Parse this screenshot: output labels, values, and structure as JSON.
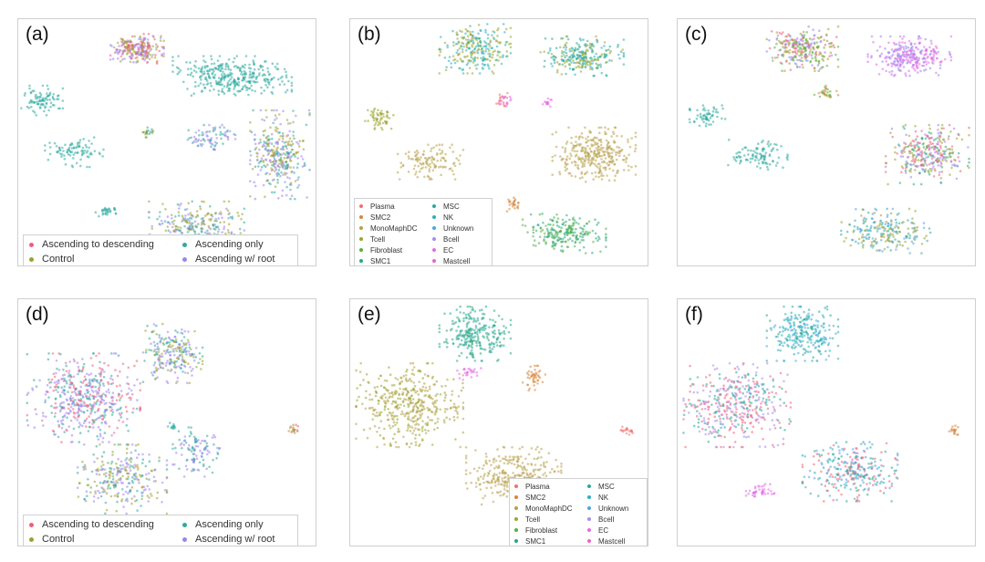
{
  "colors": {
    "ascending_to_descending": "#f0607a",
    "control": "#a0a032",
    "ascending_only": "#2eaaa0",
    "ascending_w_root": "#9c84ee",
    "Plasma": "#f07070",
    "SMC2": "#d9853a",
    "MonoMaphDC": "#b8a04a",
    "Tcell": "#9aa632",
    "Fibroblast": "#55b040",
    "SMC1": "#2aa880",
    "MSC": "#2aaa9c",
    "NK": "#2ab0c0",
    "Unknown": "#4aa6e6",
    "Bcell": "#a88cf0",
    "EC": "#e36ae6",
    "Mastcell": "#ee62c8"
  },
  "panels": [
    {
      "label": "(a)",
      "legend": "condition"
    },
    {
      "label": "(b)",
      "legend": "celltype"
    },
    {
      "label": "(c)",
      "legend": null
    },
    {
      "label": "(d)",
      "legend": "condition"
    },
    {
      "label": "(e)",
      "legend": "celltype"
    },
    {
      "label": "(f)",
      "legend": null
    }
  ],
  "legend_condition": {
    "col1": [
      "Ascending to descending",
      "Control"
    ],
    "col2": [
      "Ascending only",
      "Ascending w/ root"
    ],
    "col1_keys": [
      "ascending_to_descending",
      "control"
    ],
    "col2_keys": [
      "ascending_only",
      "ascending_w_root"
    ]
  },
  "legend_celltype": {
    "col1": [
      "Plasma",
      "SMC2",
      "MonoMaphDC",
      "Tcell",
      "Fibroblast",
      "SMC1"
    ],
    "col2": [
      "MSC",
      "NK",
      "Unknown",
      "Bcell",
      "EC",
      "Mastcell"
    ]
  },
  "chart_data": [
    {
      "type": "scatter",
      "panel": "(a)",
      "coloring": "condition",
      "legend_placement": "bottom-left",
      "clusters": [
        {
          "x": 0.4,
          "y": 0.12,
          "rx": 0.09,
          "ry": 0.06,
          "n": 260,
          "colors": [
            "ascending_w_root",
            "ascending_to_descending",
            "control"
          ]
        },
        {
          "x": 0.72,
          "y": 0.23,
          "rx": 0.2,
          "ry": 0.08,
          "n": 340,
          "colors": [
            "ascending_only"
          ]
        },
        {
          "x": 0.08,
          "y": 0.33,
          "rx": 0.07,
          "ry": 0.06,
          "n": 90,
          "colors": [
            "ascending_only"
          ]
        },
        {
          "x": 0.19,
          "y": 0.54,
          "rx": 0.1,
          "ry": 0.06,
          "n": 90,
          "colors": [
            "ascending_only"
          ]
        },
        {
          "x": 0.44,
          "y": 0.46,
          "rx": 0.02,
          "ry": 0.02,
          "n": 20,
          "colors": [
            "ascending_only",
            "control"
          ]
        },
        {
          "x": 0.65,
          "y": 0.48,
          "rx": 0.08,
          "ry": 0.05,
          "n": 80,
          "colors": [
            "ascending_only",
            "ascending_w_root"
          ]
        },
        {
          "x": 0.88,
          "y": 0.55,
          "rx": 0.1,
          "ry": 0.18,
          "n": 330,
          "colors": [
            "ascending_w_root",
            "ascending_only",
            "control"
          ]
        },
        {
          "x": 0.6,
          "y": 0.83,
          "rx": 0.16,
          "ry": 0.09,
          "n": 240,
          "colors": [
            "ascending_w_root",
            "control",
            "ascending_only"
          ]
        },
        {
          "x": 0.3,
          "y": 0.78,
          "rx": 0.04,
          "ry": 0.02,
          "n": 30,
          "colors": [
            "ascending_only"
          ]
        }
      ]
    },
    {
      "type": "scatter",
      "panel": "(b)",
      "coloring": "celltype",
      "legend_placement": "bottom-left",
      "clusters": [
        {
          "x": 0.42,
          "y": 0.12,
          "rx": 0.12,
          "ry": 0.1,
          "n": 260,
          "colors": [
            "Tcell",
            "NK"
          ]
        },
        {
          "x": 0.78,
          "y": 0.15,
          "rx": 0.14,
          "ry": 0.08,
          "n": 260,
          "colors": [
            "Tcell",
            "NK",
            "MSC"
          ]
        },
        {
          "x": 0.52,
          "y": 0.33,
          "rx": 0.03,
          "ry": 0.03,
          "n": 30,
          "colors": [
            "Plasma",
            "EC"
          ]
        },
        {
          "x": 0.1,
          "y": 0.4,
          "rx": 0.05,
          "ry": 0.05,
          "n": 60,
          "colors": [
            "Tcell"
          ]
        },
        {
          "x": 0.27,
          "y": 0.58,
          "rx": 0.11,
          "ry": 0.07,
          "n": 120,
          "colors": [
            "MonoMaphDC"
          ]
        },
        {
          "x": 0.82,
          "y": 0.55,
          "rx": 0.14,
          "ry": 0.11,
          "n": 320,
          "colors": [
            "MonoMaphDC"
          ]
        },
        {
          "x": 0.72,
          "y": 0.87,
          "rx": 0.14,
          "ry": 0.08,
          "n": 220,
          "colors": [
            "Fibroblast",
            "SMC1"
          ]
        },
        {
          "x": 0.66,
          "y": 0.34,
          "rx": 0.02,
          "ry": 0.02,
          "n": 14,
          "colors": [
            "EC"
          ]
        },
        {
          "x": 0.55,
          "y": 0.75,
          "rx": 0.03,
          "ry": 0.03,
          "n": 25,
          "colors": [
            "SMC2"
          ]
        }
      ]
    },
    {
      "type": "scatter",
      "panel": "(c)",
      "coloring": "condition",
      "legend_placement": "none",
      "clusters": [
        {
          "x": 0.42,
          "y": 0.12,
          "rx": 0.12,
          "ry": 0.09,
          "n": 280,
          "colors": [
            "ascending_to_descending",
            "control",
            "Fibroblast",
            "ascending_w_root"
          ]
        },
        {
          "x": 0.78,
          "y": 0.15,
          "rx": 0.14,
          "ry": 0.08,
          "n": 280,
          "colors": [
            "ascending_w_root",
            "EC"
          ]
        },
        {
          "x": 0.1,
          "y": 0.4,
          "rx": 0.06,
          "ry": 0.05,
          "n": 60,
          "colors": [
            "ascending_only"
          ]
        },
        {
          "x": 0.27,
          "y": 0.55,
          "rx": 0.1,
          "ry": 0.06,
          "n": 100,
          "colors": [
            "ascending_only"
          ]
        },
        {
          "x": 0.84,
          "y": 0.55,
          "rx": 0.14,
          "ry": 0.12,
          "n": 320,
          "colors": [
            "SMC1",
            "ascending_to_descending",
            "control",
            "ascending_w_root"
          ]
        },
        {
          "x": 0.7,
          "y": 0.86,
          "rx": 0.15,
          "ry": 0.09,
          "n": 220,
          "colors": [
            "ascending_only",
            "control",
            "Unknown"
          ]
        },
        {
          "x": 0.5,
          "y": 0.3,
          "rx": 0.04,
          "ry": 0.03,
          "n": 30,
          "colors": [
            "SMC2",
            "Fibroblast"
          ]
        }
      ]
    },
    {
      "type": "scatter",
      "panel": "(d)",
      "coloring": "condition",
      "legend_placement": "bottom-left",
      "clusters": [
        {
          "x": 0.22,
          "y": 0.4,
          "rx": 0.19,
          "ry": 0.18,
          "n": 520,
          "colors": [
            "ascending_only",
            "ascending_w_root",
            "ascending_to_descending"
          ]
        },
        {
          "x": 0.52,
          "y": 0.22,
          "rx": 0.1,
          "ry": 0.12,
          "n": 230,
          "colors": [
            "ascending_w_root",
            "control",
            "ascending_only"
          ]
        },
        {
          "x": 0.35,
          "y": 0.73,
          "rx": 0.15,
          "ry": 0.14,
          "n": 280,
          "colors": [
            "ascending_w_root",
            "control",
            "ascending_only"
          ]
        },
        {
          "x": 0.6,
          "y": 0.62,
          "rx": 0.08,
          "ry": 0.1,
          "n": 110,
          "colors": [
            "ascending_only",
            "ascending_w_root"
          ]
        },
        {
          "x": 0.93,
          "y": 0.53,
          "rx": 0.02,
          "ry": 0.02,
          "n": 18,
          "colors": [
            "ascending_to_descending",
            "control"
          ]
        },
        {
          "x": 0.52,
          "y": 0.52,
          "rx": 0.02,
          "ry": 0.02,
          "n": 12,
          "colors": [
            "ascending_only"
          ]
        }
      ]
    },
    {
      "type": "scatter",
      "panel": "(e)",
      "coloring": "celltype",
      "legend_placement": "bottom-right",
      "clusters": [
        {
          "x": 0.42,
          "y": 0.14,
          "rx": 0.12,
          "ry": 0.11,
          "n": 260,
          "colors": [
            "MSC",
            "SMC1"
          ]
        },
        {
          "x": 0.2,
          "y": 0.43,
          "rx": 0.18,
          "ry": 0.17,
          "n": 430,
          "colors": [
            "Tcell",
            "MonoMaphDC"
          ]
        },
        {
          "x": 0.55,
          "y": 0.72,
          "rx": 0.16,
          "ry": 0.12,
          "n": 300,
          "colors": [
            "MonoMaphDC"
          ]
        },
        {
          "x": 0.62,
          "y": 0.32,
          "rx": 0.04,
          "ry": 0.05,
          "n": 45,
          "colors": [
            "SMC2"
          ]
        },
        {
          "x": 0.93,
          "y": 0.53,
          "rx": 0.02,
          "ry": 0.02,
          "n": 18,
          "colors": [
            "Plasma"
          ]
        },
        {
          "x": 0.4,
          "y": 0.3,
          "rx": 0.04,
          "ry": 0.03,
          "n": 25,
          "colors": [
            "EC"
          ]
        }
      ]
    },
    {
      "type": "scatter",
      "panel": "(f)",
      "coloring": "other",
      "legend_placement": "none",
      "clusters": [
        {
          "x": 0.42,
          "y": 0.14,
          "rx": 0.12,
          "ry": 0.11,
          "n": 260,
          "colors": [
            "NK",
            "Unknown",
            "MSC"
          ]
        },
        {
          "x": 0.2,
          "y": 0.43,
          "rx": 0.18,
          "ry": 0.17,
          "n": 430,
          "colors": [
            "Bcell",
            "ascending_to_descending",
            "MSC"
          ]
        },
        {
          "x": 0.58,
          "y": 0.7,
          "rx": 0.16,
          "ry": 0.12,
          "n": 300,
          "colors": [
            "MSC",
            "ascending_to_descending",
            "Unknown"
          ]
        },
        {
          "x": 0.28,
          "y": 0.78,
          "rx": 0.05,
          "ry": 0.03,
          "n": 40,
          "colors": [
            "EC"
          ]
        },
        {
          "x": 0.93,
          "y": 0.53,
          "rx": 0.02,
          "ry": 0.02,
          "n": 18,
          "colors": [
            "SMC2"
          ]
        }
      ]
    }
  ]
}
